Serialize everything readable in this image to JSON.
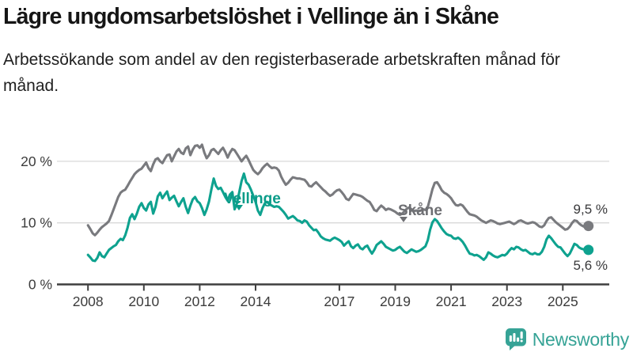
{
  "chart_data": {
    "type": "line",
    "title": "Lägre ungdomsarbetslöshet i Vellinge än i Skåne",
    "subtitle": "Arbetssökande som andel av den registerbaserade arbetskraften månad för månad.",
    "unit": "%",
    "x_start_year": 2008,
    "points_per_year": 12,
    "grid": "horizontal",
    "ylim": [
      0,
      24
    ],
    "x_ticks": [
      {
        "year": 2008,
        "label": "2008"
      },
      {
        "year": 2010,
        "label": "2010"
      },
      {
        "year": 2012,
        "label": "2012"
      },
      {
        "year": 2014,
        "label": "2014"
      },
      {
        "year": 2017,
        "label": "2017"
      },
      {
        "year": 2019,
        "label": "2019"
      },
      {
        "year": 2021,
        "label": "2021"
      },
      {
        "year": 2023,
        "label": "2023"
      },
      {
        "year": 2025,
        "label": "2025"
      }
    ],
    "y_ticks": [
      {
        "value": 0,
        "label": "0 %"
      },
      {
        "value": 10,
        "label": "10 %"
      },
      {
        "value": 20,
        "label": "20 %"
      }
    ],
    "series": [
      {
        "name": "Skåne",
        "color": "#797a7e",
        "label_color": "#6e6f73",
        "end_label": "9,5 %",
        "end_value": 9.5,
        "values": [
          9.6,
          9.0,
          8.3,
          8.0,
          8.4,
          8.9,
          9.3,
          9.6,
          9.9,
          10.3,
          11.2,
          12.2,
          13.2,
          14.2,
          14.9,
          15.2,
          15.4,
          16.0,
          16.7,
          17.3,
          17.9,
          18.3,
          18.6,
          18.8,
          19.3,
          19.8,
          18.9,
          18.4,
          19.5,
          20.3,
          20.5,
          20.0,
          19.7,
          20.4,
          21.0,
          21.1,
          20.0,
          20.8,
          21.6,
          22.0,
          21.4,
          21.2,
          22.1,
          22.4,
          21.0,
          21.9,
          22.5,
          22.6,
          22.2,
          22.7,
          21.4,
          20.5,
          21.0,
          21.8,
          22.0,
          21.6,
          21.2,
          21.8,
          22.2,
          21.5,
          20.6,
          21.4,
          22.0,
          21.8,
          21.2,
          20.6,
          20.0,
          20.5,
          20.9,
          20.2,
          19.4,
          18.6,
          18.2,
          17.9,
          18.3,
          18.9,
          19.3,
          19.6,
          19.2,
          18.9,
          19.0,
          18.9,
          18.5,
          17.5,
          16.8,
          16.2,
          16.5,
          17.0,
          17.4,
          17.3,
          17.2,
          17.2,
          17.1,
          17.0,
          16.6,
          16.0,
          15.9,
          16.3,
          16.6,
          16.2,
          15.8,
          15.4,
          15.1,
          14.7,
          14.4,
          14.6,
          15.0,
          15.3,
          15.4,
          15.0,
          14.5,
          13.9,
          13.7,
          14.2,
          14.7,
          14.6,
          14.5,
          14.4,
          14.2,
          13.9,
          13.6,
          13.4,
          12.8,
          12.1,
          11.9,
          12.4,
          12.8,
          12.5,
          12.1,
          12.3,
          12.2,
          12.0,
          11.8,
          11.5,
          11.3,
          11.5,
          11.9,
          12.3,
          12.5,
          12.2,
          11.9,
          12.0,
          11.9,
          12.0,
          12.2,
          12.1,
          12.6,
          14.0,
          15.5,
          16.5,
          16.6,
          16.0,
          15.3,
          14.9,
          14.7,
          14.4,
          14.0,
          13.4,
          12.9,
          12.8,
          13.0,
          12.8,
          12.3,
          11.8,
          11.4,
          11.3,
          11.2,
          11.0,
          10.7,
          10.4,
          10.2,
          10.0,
          10.2,
          10.4,
          10.3,
          10.1,
          9.9,
          9.8,
          9.9,
          10.0,
          10.1,
          10.2,
          10.0,
          9.8,
          10.0,
          10.3,
          10.4,
          10.2,
          10.0,
          9.9,
          10.0,
          10.1,
          10.0,
          9.7,
          9.4,
          9.3,
          9.6,
          10.3,
          10.8,
          10.9,
          10.5,
          10.1,
          9.8,
          9.5,
          9.2,
          8.9,
          9.0,
          9.4,
          10.0,
          10.4,
          10.3,
          9.9,
          9.6,
          9.4,
          9.5,
          9.5
        ]
      },
      {
        "name": "Vellinge",
        "color": "#0ea28f",
        "label_color": "#0a9c89",
        "end_label": "5,6 %",
        "end_value": 5.6,
        "values": [
          4.8,
          4.4,
          3.9,
          3.8,
          4.3,
          5.2,
          4.6,
          4.4,
          5.0,
          5.6,
          5.9,
          6.2,
          6.4,
          7.0,
          7.4,
          7.2,
          8.0,
          9.2,
          10.8,
          11.4,
          10.6,
          11.5,
          12.6,
          13.2,
          12.4,
          12.0,
          13.0,
          13.4,
          11.5,
          12.6,
          14.3,
          14.9,
          14.0,
          14.6,
          15.1,
          13.7,
          14.1,
          14.4,
          13.5,
          12.7,
          13.4,
          14.0,
          12.6,
          11.6,
          12.8,
          13.8,
          14.2,
          13.5,
          13.2,
          12.4,
          11.3,
          12.2,
          13.5,
          15.4,
          17.2,
          16.0,
          15.5,
          15.7,
          15.0,
          14.2,
          13.6,
          14.6,
          15.0,
          12.2,
          13.2,
          15.0,
          16.8,
          18.0,
          16.6,
          16.2,
          15.4,
          14.4,
          13.4,
          12.0,
          11.3,
          12.4,
          13.2,
          13.4,
          13.0,
          12.8,
          12.6,
          12.7,
          12.6,
          12.2,
          11.8,
          11.3,
          10.7,
          10.9,
          11.1,
          10.8,
          10.4,
          10.3,
          10.0,
          10.4,
          10.2,
          9.6,
          9.2,
          8.8,
          8.9,
          8.4,
          7.8,
          7.5,
          7.3,
          7.2,
          7.1,
          7.4,
          7.6,
          7.4,
          7.2,
          6.9,
          6.3,
          6.7,
          7.0,
          6.2,
          5.9,
          6.3,
          6.5,
          5.9,
          5.7,
          6.1,
          6.3,
          5.6,
          5.0,
          5.6,
          6.4,
          6.7,
          7.0,
          6.6,
          6.1,
          5.9,
          5.7,
          5.5,
          5.6,
          5.9,
          6.1,
          5.7,
          5.3,
          5.1,
          5.4,
          5.7,
          5.5,
          5.3,
          5.4,
          5.6,
          5.9,
          6.2,
          7.2,
          8.9,
          10.1,
          10.6,
          10.3,
          9.7,
          9.1,
          8.6,
          8.2,
          8.0,
          7.9,
          7.5,
          7.4,
          7.6,
          7.3,
          6.9,
          6.3,
          5.6,
          5.0,
          4.9,
          4.7,
          4.8,
          4.6,
          4.3,
          4.0,
          4.4,
          5.2,
          5.0,
          4.7,
          4.5,
          4.4,
          4.6,
          4.8,
          4.7,
          5.0,
          5.5,
          5.9,
          5.7,
          6.1,
          6.0,
          5.7,
          5.5,
          5.6,
          5.3,
          5.0,
          4.9,
          5.1,
          4.9,
          4.9,
          5.3,
          6.1,
          7.3,
          7.9,
          7.5,
          7.0,
          6.5,
          6.1,
          6.0,
          5.5,
          5.0,
          4.6,
          5.0,
          5.8,
          6.6,
          6.4,
          6.0,
          5.8,
          5.7,
          5.6,
          5.6
        ]
      }
    ]
  },
  "footer": {
    "brand": "Newsworthy",
    "brand_color": "#36a396"
  }
}
